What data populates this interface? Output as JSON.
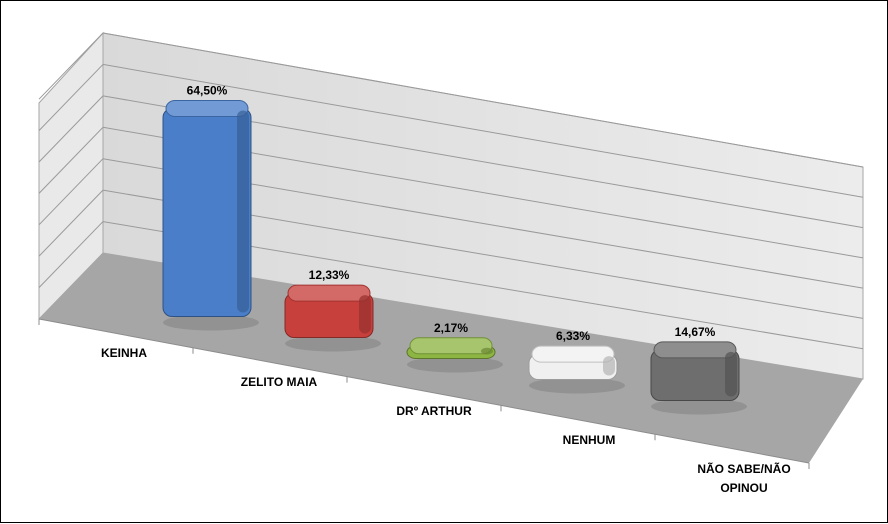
{
  "chart_data": {
    "type": "bar",
    "title": "",
    "xlabel": "",
    "ylabel": "",
    "categories": [
      "KEINHA",
      "ZELITO MAIA",
      "DRº ARTHUR",
      "NENHUM",
      "NÃO SABE/NÃO OPINOU"
    ],
    "category_lines": [
      [
        "KEINHA"
      ],
      [
        "ZELITO MAIA"
      ],
      [
        "DRº ARTHUR"
      ],
      [
        "NENHUM"
      ],
      [
        "NÃO SABE/NÃO",
        "OPINOU"
      ]
    ],
    "values": [
      64.5,
      12.33,
      2.17,
      6.33,
      14.67
    ],
    "data_labels": [
      "64,50%",
      "12,33%",
      "2,17%",
      "6,33%",
      "14,67%"
    ],
    "colors": [
      "#4a7ec9",
      "#c8403c",
      "#8db543",
      "#f0f0f0",
      "#6e6e6e"
    ],
    "ylim": [
      0,
      70
    ],
    "grid": true,
    "style": "3d-column",
    "legend": "none"
  }
}
